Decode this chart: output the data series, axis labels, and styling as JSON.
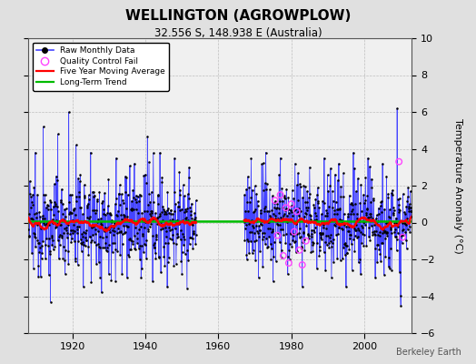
{
  "title": "WELLINGTON (AGROWPLOW)",
  "subtitle": "32.556 S, 148.938 E (Australia)",
  "ylabel": "Temperature Anomaly (°C)",
  "attribution": "Berkeley Earth",
  "year_start": 1908,
  "year_end": 2013,
  "gap_start": 1954,
  "gap_end": 1967,
  "ylim": [
    -6,
    10
  ],
  "yticks": [
    -6,
    -4,
    -2,
    0,
    2,
    4,
    6,
    8,
    10
  ],
  "bg_color": "#e0e0e0",
  "plot_bg_color": "#f0f0f0",
  "raw_color": "#4444ff",
  "dot_color": "#000000",
  "moving_avg_color": "#ff0000",
  "trend_color": "#00bb00",
  "qc_fail_color": "#ff44ff",
  "xtick_years": [
    1920,
    1940,
    1960,
    1980,
    2000
  ],
  "legend_items": [
    "Raw Monthly Data",
    "Quality Control Fail",
    "Five Year Moving Average",
    "Long-Term Trend"
  ]
}
